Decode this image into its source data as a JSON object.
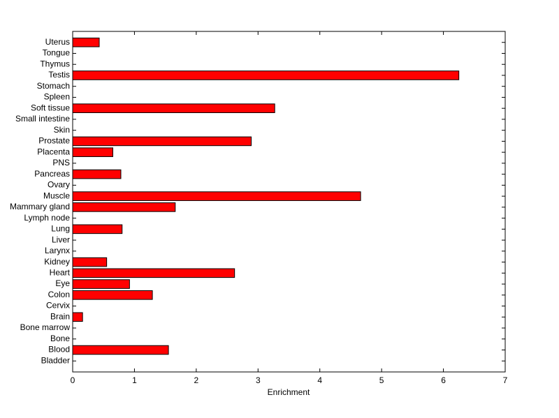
{
  "chart_data": {
    "type": "barh",
    "xlabel": "Enrichment",
    "categories": [
      "Bladder",
      "Blood",
      "Bone",
      "Bone marrow",
      "Brain",
      "Cervix",
      "Colon",
      "Eye",
      "Heart",
      "Kidney",
      "Larynx",
      "Liver",
      "Lung",
      "Lymph node",
      "Mammary gland",
      "Muscle",
      "Ovary",
      "Pancreas",
      "PNS",
      "Placenta",
      "Prostate",
      "Skin",
      "Small intestine",
      "Soft tissue",
      "Spleen",
      "Stomach",
      "Testis",
      "Thymus",
      "Tongue",
      "Uterus"
    ],
    "values": [
      0,
      1.55,
      0,
      0,
      0.16,
      0,
      1.29,
      0.92,
      2.62,
      0.55,
      0,
      0,
      0.8,
      0,
      1.66,
      4.66,
      0,
      0.78,
      0,
      0.65,
      2.89,
      0,
      0,
      3.27,
      0,
      0,
      6.25,
      0,
      0,
      0.43
    ],
    "color": "#ff0000",
    "xlim": [
      0,
      7
    ],
    "xticks": [
      0,
      1,
      2,
      3,
      4,
      5,
      6,
      7
    ]
  }
}
